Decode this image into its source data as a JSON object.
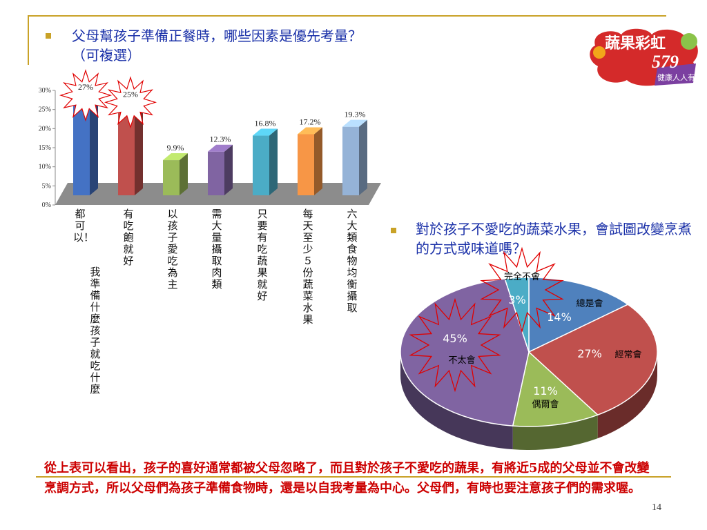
{
  "question1": "父母幫孩子準備正餐時，哪些因素是優先考量？（可複選）",
  "question2": "對於孩子不愛吃的蔬菜水果，會試圖改變烹煮的方式或味道嗎？",
  "logo": {
    "line1": "蔬果彩虹",
    "line2": "579",
    "line3": "健康人人有"
  },
  "conclusion": "從上表可以看出，孩子的喜好通常都被父母忽略了，而且對於孩子不愛吃的蔬果，有將近5成的父母並不會改變烹調方式，所以父母們為孩子準備食物時，還是以自我考量為中心。父母們，有時也要注意孩子們的需求喔。",
  "page_number": "14",
  "chart_data": [
    {
      "type": "bar",
      "categories": [
        "都可以！我準備什麼孩子就吃什麼",
        "有吃飽就好",
        "以孩子愛吃為主",
        "需大量攝取肉類",
        "只要有吃蔬果就好",
        "每天至少５份蔬菜水果",
        "六大類食物均衡攝取"
      ],
      "values": [
        27,
        25,
        9.9,
        12.3,
        16.8,
        17.2,
        19.3
      ],
      "value_labels": [
        "27%",
        "25%",
        "9.9%",
        "12.3%",
        "16.8%",
        "17.2%",
        "19.3%"
      ],
      "colors": [
        "#4472c4",
        "#c0504d",
        "#9bbb59",
        "#8064a2",
        "#4bacc6",
        "#f79646",
        "#95b3d7"
      ],
      "ylim": [
        0,
        30
      ],
      "yticks": [
        "0%",
        "5%",
        "10%",
        "15%",
        "20%",
        "25%",
        "30%"
      ],
      "highlighted": [
        "27%",
        "25%"
      ]
    },
    {
      "type": "pie",
      "slices": [
        {
          "label": "總是會",
          "value": 14,
          "value_label": "14%",
          "color": "#4f81bd"
        },
        {
          "label": "經常會",
          "value": 27,
          "value_label": "27%",
          "color": "#c0504d"
        },
        {
          "label": "偶爾會",
          "value": 11,
          "value_label": "11%",
          "color": "#9bbb59"
        },
        {
          "label": "不太會",
          "value": 45,
          "value_label": "45%",
          "color": "#8064a2"
        },
        {
          "label": "完全不會",
          "value": 3,
          "value_label": "3%",
          "color": "#4bacc6"
        }
      ]
    }
  ]
}
